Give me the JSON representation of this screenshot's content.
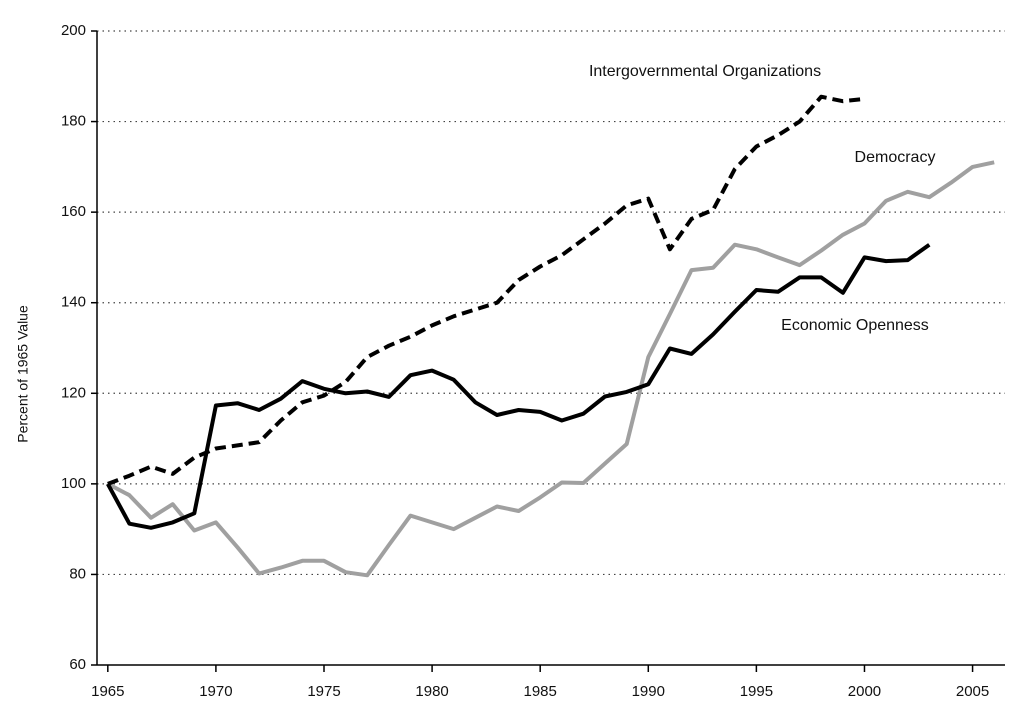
{
  "chart_data": {
    "type": "line",
    "y_label": "Percent of 1965 Value",
    "x": [
      1965,
      1966,
      1967,
      1968,
      1969,
      1970,
      1971,
      1972,
      1973,
      1974,
      1975,
      1976,
      1977,
      1978,
      1979,
      1980,
      1981,
      1982,
      1983,
      1984,
      1985,
      1986,
      1987,
      1988,
      1989,
      1990,
      1991,
      1992,
      1993,
      1994,
      1995,
      1996,
      1997,
      1998,
      1999,
      2000,
      2001,
      2002,
      2003,
      2004,
      2005,
      2006
    ],
    "series": [
      {
        "name": "Intergovernmental Organizations",
        "color": "#000000",
        "line_style": "dashed",
        "values": [
          100,
          101.8,
          103.8,
          102.2,
          105.8,
          107.8,
          108.5,
          109.2,
          114,
          118,
          119.5,
          122.5,
          128,
          130.5,
          132.5,
          135,
          137,
          138.5,
          140,
          145,
          148,
          150.5,
          154,
          157.5,
          161.5,
          163,
          151.8,
          158.5,
          160.5,
          169.5,
          174.5,
          177,
          180,
          185.5,
          184.5,
          185,
          null,
          null,
          null,
          null,
          null,
          null
        ]
      },
      {
        "name": "Democracy",
        "color": "#a0a0a0",
        "line_style": "solid",
        "values": [
          100,
          97.5,
          92.5,
          95.5,
          89.7,
          91.5,
          86,
          80.2,
          81.5,
          83,
          83,
          80.5,
          79.8,
          86.5,
          93,
          91.5,
          90,
          92.5,
          95,
          94,
          97,
          100.3,
          100.2,
          104.5,
          108.8,
          128,
          137.5,
          147.2,
          147.7,
          152.8,
          151.8,
          150,
          148.3,
          151.5,
          155,
          157.5,
          162.5,
          164.5,
          163.3,
          166.5,
          170,
          171
        ]
      },
      {
        "name": "Economic Openness",
        "color": "#000000",
        "line_style": "solid",
        "values": [
          100,
          91.2,
          90.3,
          91.5,
          93.5,
          117.3,
          117.8,
          116.3,
          118.8,
          122.7,
          121,
          120,
          120.4,
          119.2,
          124,
          125,
          123,
          118,
          115.2,
          116.3,
          115.9,
          114,
          115.5,
          119.3,
          120.3,
          122,
          129.9,
          128.7,
          133,
          138,
          142.8,
          142.4,
          145.6,
          145.6,
          142.2,
          150,
          149.2,
          149.4,
          152.8,
          null,
          null,
          null
        ]
      }
    ],
    "xlim": [
      1964.5,
      2006.5
    ],
    "xticks": [
      1965,
      1970,
      1975,
      1980,
      1985,
      1990,
      1995,
      2000,
      2005
    ],
    "ylim": [
      60,
      200
    ],
    "yticks": [
      60,
      80,
      100,
      120,
      140,
      160,
      180,
      200
    ],
    "grid": true
  }
}
